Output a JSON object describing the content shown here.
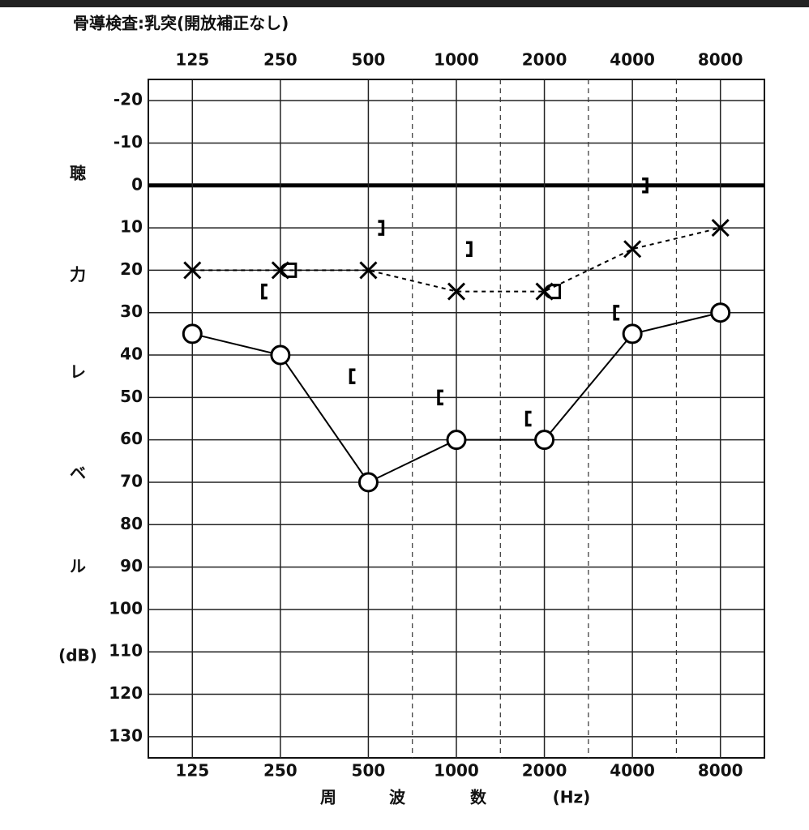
{
  "chart_data": {
    "type": "audiogram",
    "title": "骨導検査:乳突(開放補正なし)",
    "categories": [
      "125",
      "250",
      "500",
      "1000",
      "2000",
      "4000",
      "8000"
    ],
    "x_label": [
      "周",
      "波",
      "数",
      "(Hz)"
    ],
    "y_label": [
      "聴",
      "力",
      "レ",
      "ベ",
      "ル",
      "(dB)"
    ],
    "ylim": [
      135,
      -25
    ],
    "yticks": [
      -20,
      -10,
      0,
      10,
      20,
      30,
      40,
      50,
      60,
      70,
      80,
      90,
      100,
      110,
      120,
      130
    ],
    "grid": true,
    "zero_line": true,
    "series": [
      {
        "marker": "o",
        "line": "solid",
        "color": "#000000",
        "values": [
          35,
          40,
          70,
          60,
          60,
          35,
          30
        ]
      },
      {
        "marker": "x",
        "line": "dashed",
        "color": "#000000",
        "values": [
          20,
          20,
          20,
          25,
          25,
          15,
          10
        ]
      },
      {
        "marker": "[",
        "line": "none",
        "color": "#000000",
        "values": [
          null,
          25,
          45,
          50,
          55,
          30,
          null
        ]
      },
      {
        "marker": "]",
        "line": "none",
        "color": "#000000",
        "values": [
          null,
          null,
          10,
          15,
          null,
          0,
          null
        ]
      },
      {
        "marker": "d",
        "line": "none",
        "color": "#000000",
        "values": [
          null,
          20,
          null,
          null,
          25,
          null,
          null
        ]
      }
    ]
  }
}
